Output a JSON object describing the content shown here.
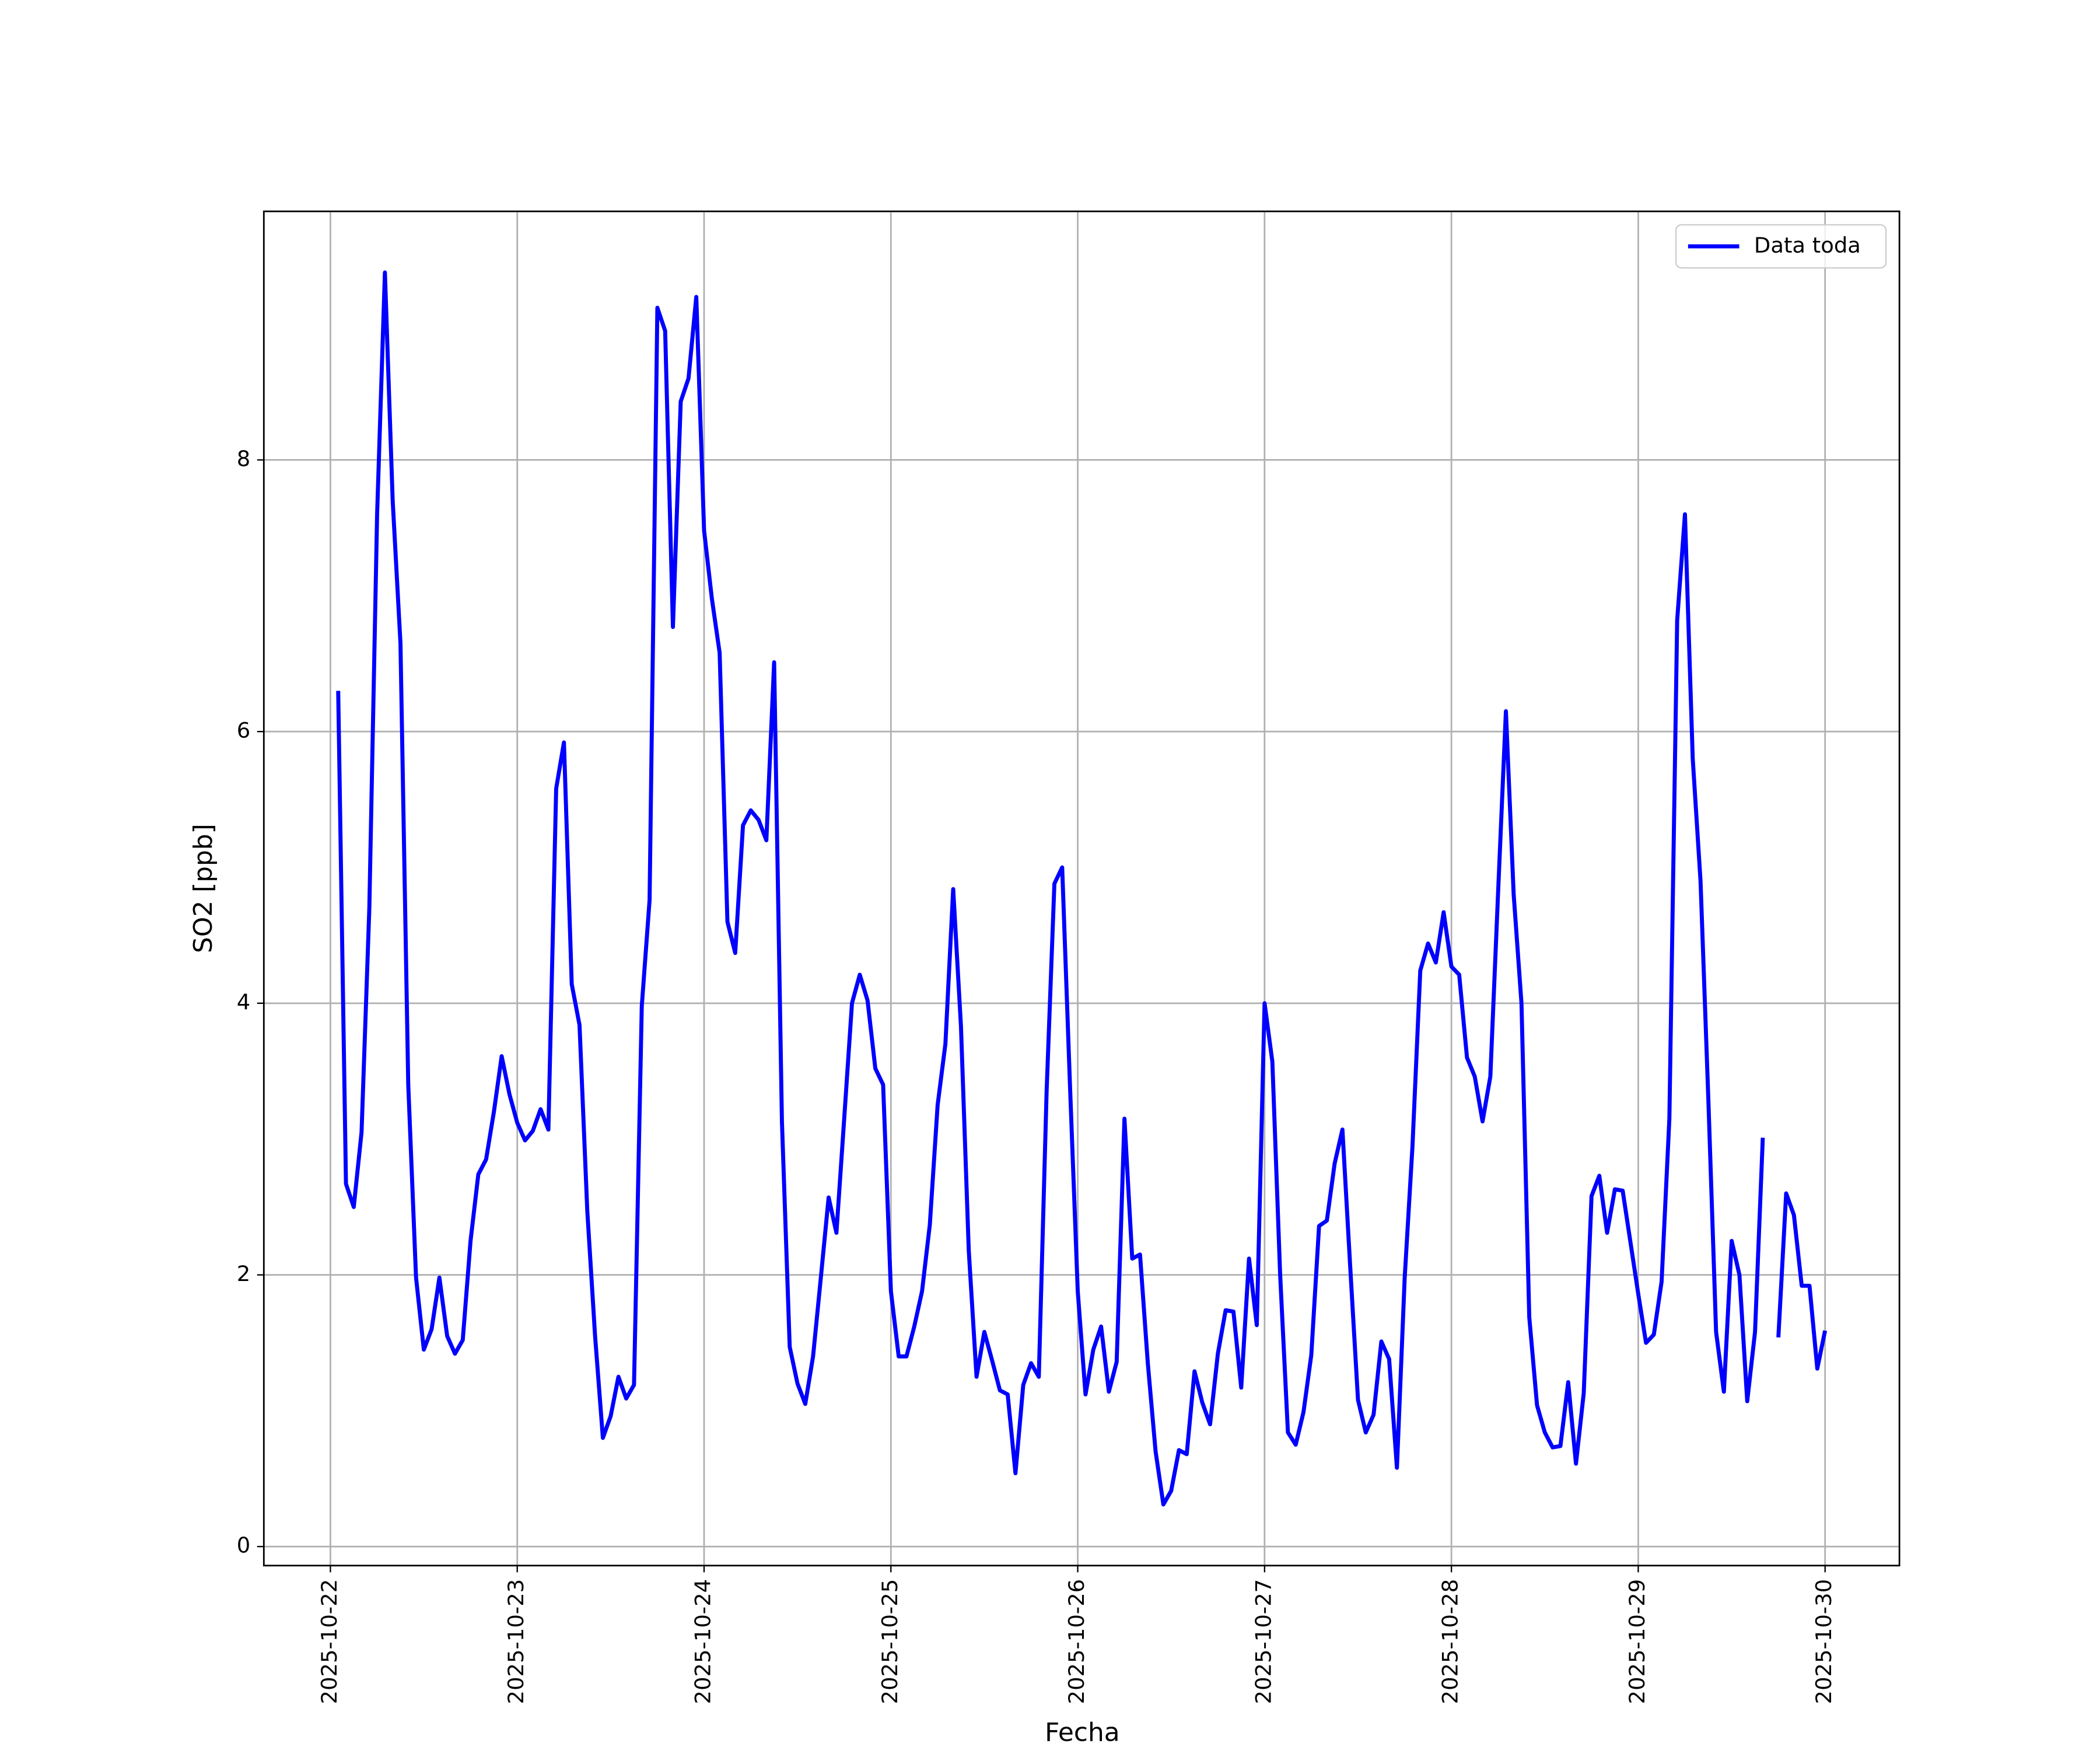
{
  "chart_data": {
    "type": "line",
    "xlabel": "Fecha",
    "ylabel": "SO2 [ppb]",
    "x": [
      "2025-10-22 01:00",
      "2025-10-22 02:00",
      "2025-10-22 03:00",
      "2025-10-22 04:00",
      "2025-10-22 05:00",
      "2025-10-22 06:00",
      "2025-10-22 07:00",
      "2025-10-22 08:00",
      "2025-10-22 09:00",
      "2025-10-22 10:00",
      "2025-10-22 11:00",
      "2025-10-22 12:00",
      "2025-10-22 13:00",
      "2025-10-22 14:00",
      "2025-10-22 15:00",
      "2025-10-22 16:00",
      "2025-10-22 17:00",
      "2025-10-22 18:00",
      "2025-10-22 19:00",
      "2025-10-22 20:00",
      "2025-10-22 21:00",
      "2025-10-22 22:00",
      "2025-10-22 23:00",
      "2025-10-23 00:00",
      "2025-10-23 01:00",
      "2025-10-23 02:00",
      "2025-10-23 03:00",
      "2025-10-23 04:00",
      "2025-10-23 05:00",
      "2025-10-23 06:00",
      "2025-10-23 07:00",
      "2025-10-23 08:00",
      "2025-10-23 09:00",
      "2025-10-23 10:00",
      "2025-10-23 11:00",
      "2025-10-23 12:00",
      "2025-10-23 13:00",
      "2025-10-23 14:00",
      "2025-10-23 15:00",
      "2025-10-23 16:00",
      "2025-10-23 17:00",
      "2025-10-23 18:00",
      "2025-10-23 19:00",
      "2025-10-23 20:00",
      "2025-10-23 21:00",
      "2025-10-23 22:00",
      "2025-10-23 23:00",
      "2025-10-24 00:00",
      "2025-10-24 01:00",
      "2025-10-24 02:00",
      "2025-10-24 03:00",
      "2025-10-24 04:00",
      "2025-10-24 05:00",
      "2025-10-24 06:00",
      "2025-10-24 07:00",
      "2025-10-24 08:00",
      "2025-10-24 09:00",
      "2025-10-24 10:00",
      "2025-10-24 11:00",
      "2025-10-24 12:00",
      "2025-10-24 13:00",
      "2025-10-24 14:00",
      "2025-10-24 15:00",
      "2025-10-24 16:00",
      "2025-10-24 17:00",
      "2025-10-24 18:00",
      "2025-10-24 19:00",
      "2025-10-24 20:00",
      "2025-10-24 21:00",
      "2025-10-24 22:00",
      "2025-10-24 23:00",
      "2025-10-25 00:00",
      "2025-10-25 01:00",
      "2025-10-25 02:00",
      "2025-10-25 03:00",
      "2025-10-25 04:00",
      "2025-10-25 05:00",
      "2025-10-25 06:00",
      "2025-10-25 07:00",
      "2025-10-25 08:00",
      "2025-10-25 09:00",
      "2025-10-25 10:00",
      "2025-10-25 11:00",
      "2025-10-25 12:00",
      "2025-10-25 13:00",
      "2025-10-25 14:00",
      "2025-10-25 15:00",
      "2025-10-25 16:00",
      "2025-10-25 17:00",
      "2025-10-25 18:00",
      "2025-10-25 19:00",
      "2025-10-25 20:00",
      "2025-10-25 21:00",
      "2025-10-25 22:00",
      "2025-10-25 23:00",
      "2025-10-26 00:00",
      "2025-10-26 01:00",
      "2025-10-26 02:00",
      "2025-10-26 03:00",
      "2025-10-26 04:00",
      "2025-10-26 05:00",
      "2025-10-26 06:00",
      "2025-10-26 07:00",
      "2025-10-26 08:00",
      "2025-10-26 09:00",
      "2025-10-26 10:00",
      "2025-10-26 11:00",
      "2025-10-26 12:00",
      "2025-10-26 13:00",
      "2025-10-26 14:00",
      "2025-10-26 15:00",
      "2025-10-26 16:00",
      "2025-10-26 17:00",
      "2025-10-26 18:00",
      "2025-10-26 19:00",
      "2025-10-26 20:00",
      "2025-10-26 21:00",
      "2025-10-26 22:00",
      "2025-10-26 23:00",
      "2025-10-27 00:00",
      "2025-10-27 01:00",
      "2025-10-27 02:00",
      "2025-10-27 03:00",
      "2025-10-27 04:00",
      "2025-10-27 05:00",
      "2025-10-27 06:00",
      "2025-10-27 07:00",
      "2025-10-27 08:00",
      "2025-10-27 09:00",
      "2025-10-27 10:00",
      "2025-10-27 11:00",
      "2025-10-27 12:00",
      "2025-10-27 13:00",
      "2025-10-27 14:00",
      "2025-10-27 15:00",
      "2025-10-27 16:00",
      "2025-10-27 17:00",
      "2025-10-27 18:00",
      "2025-10-27 19:00",
      "2025-10-27 20:00",
      "2025-10-27 21:00",
      "2025-10-27 22:00",
      "2025-10-27 23:00",
      "2025-10-28 00:00",
      "2025-10-28 01:00",
      "2025-10-28 02:00",
      "2025-10-28 03:00",
      "2025-10-28 04:00",
      "2025-10-28 05:00",
      "2025-10-28 06:00",
      "2025-10-28 07:00",
      "2025-10-28 08:00",
      "2025-10-28 09:00",
      "2025-10-28 10:00",
      "2025-10-28 11:00",
      "2025-10-28 12:00",
      "2025-10-28 13:00",
      "2025-10-28 14:00",
      "2025-10-28 15:00",
      "2025-10-28 16:00",
      "2025-10-28 17:00",
      "2025-10-28 18:00",
      "2025-10-28 19:00",
      "2025-10-28 20:00",
      "2025-10-28 21:00",
      "2025-10-28 22:00",
      "2025-10-28 23:00",
      "2025-10-29 00:00",
      "2025-10-29 01:00",
      "2025-10-29 02:00",
      "2025-10-29 03:00",
      "2025-10-29 04:00",
      "2025-10-29 05:00",
      "2025-10-29 06:00",
      "2025-10-29 07:00",
      "2025-10-29 08:00",
      "2025-10-29 09:00",
      "2025-10-29 10:00",
      "2025-10-29 11:00",
      "2025-10-29 12:00",
      "2025-10-29 13:00",
      "2025-10-29 14:00",
      "2025-10-29 15:00",
      "2025-10-29 16:00",
      "2025-10-29 17:00",
      "2025-10-29 18:00",
      "2025-10-29 19:00",
      "2025-10-29 20:00",
      "2025-10-29 21:00",
      "2025-10-29 22:00",
      "2025-10-29 23:00",
      "2025-10-30 00:00"
    ],
    "series": [
      {
        "name": "Data toda",
        "color": "#0000ff",
        "values": [
          6.3,
          2.67,
          2.5,
          3.05,
          4.7,
          7.6,
          9.38,
          7.7,
          6.65,
          3.4,
          1.98,
          1.45,
          1.6,
          1.98,
          1.55,
          1.42,
          1.52,
          2.25,
          2.74,
          2.85,
          3.2,
          3.61,
          3.33,
          3.12,
          2.99,
          3.06,
          3.22,
          3.07,
          5.58,
          5.92,
          4.14,
          3.84,
          2.47,
          1.55,
          0.8,
          0.96,
          1.25,
          1.09,
          1.19,
          3.98,
          4.76,
          9.12,
          8.95,
          6.77,
          8.43,
          8.6,
          9.2,
          7.48,
          6.98,
          6.58,
          4.6,
          4.37,
          5.31,
          5.42,
          5.35,
          5.2,
          6.51,
          3.13,
          1.47,
          1.2,
          1.05,
          1.4,
          1.98,
          2.57,
          2.31,
          3.15,
          4.0,
          4.21,
          4.02,
          3.52,
          3.4,
          1.88,
          1.4,
          1.4,
          1.62,
          1.88,
          2.37,
          3.25,
          3.7,
          4.84,
          3.83,
          2.18,
          1.25,
          1.58,
          1.37,
          1.15,
          1.12,
          0.54,
          1.19,
          1.35,
          1.25,
          3.35,
          4.88,
          5.0,
          3.4,
          1.88,
          1.12,
          1.45,
          1.62,
          1.14,
          1.36,
          3.15,
          2.12,
          2.15,
          1.35,
          0.7,
          0.31,
          0.41,
          0.71,
          0.68,
          1.29,
          1.06,
          0.9,
          1.42,
          1.74,
          1.73,
          1.17,
          2.12,
          1.63,
          4.0,
          3.57,
          2.0,
          0.84,
          0.75,
          0.99,
          1.41,
          2.36,
          2.4,
          2.82,
          3.07,
          2.06,
          1.08,
          0.84,
          0.97,
          1.51,
          1.38,
          0.58,
          1.98,
          2.95,
          4.24,
          4.44,
          4.3,
          4.67,
          4.27,
          4.21,
          3.6,
          3.46,
          3.13,
          3.46,
          4.82,
          6.15,
          4.8,
          4.0,
          1.69,
          1.04,
          0.84,
          0.73,
          0.74,
          1.21,
          0.61,
          1.13,
          2.58,
          2.73,
          2.31,
          2.63,
          2.62,
          2.24,
          1.86,
          1.5,
          1.56,
          1.95,
          3.15,
          6.82,
          7.6,
          5.8,
          4.9,
          3.3,
          1.58,
          1.14,
          2.25,
          2.0,
          1.07,
          1.58,
          3.01,
          null,
          1.54,
          2.6,
          2.44,
          1.92,
          1.92,
          1.31,
          1.59
        ]
      }
    ],
    "xlim": [
      "2025-10-21 15:27",
      "2025-10-30 09:33"
    ],
    "xticks": [
      "2025-10-22",
      "2025-10-23",
      "2025-10-24",
      "2025-10-25",
      "2025-10-26",
      "2025-10-27",
      "2025-10-28",
      "2025-10-29",
      "2025-10-30"
    ],
    "ylim": [
      -0.14,
      9.83
    ],
    "yticks": [
      0,
      2,
      4,
      6,
      8
    ],
    "grid": true,
    "legend": "upper-right"
  }
}
